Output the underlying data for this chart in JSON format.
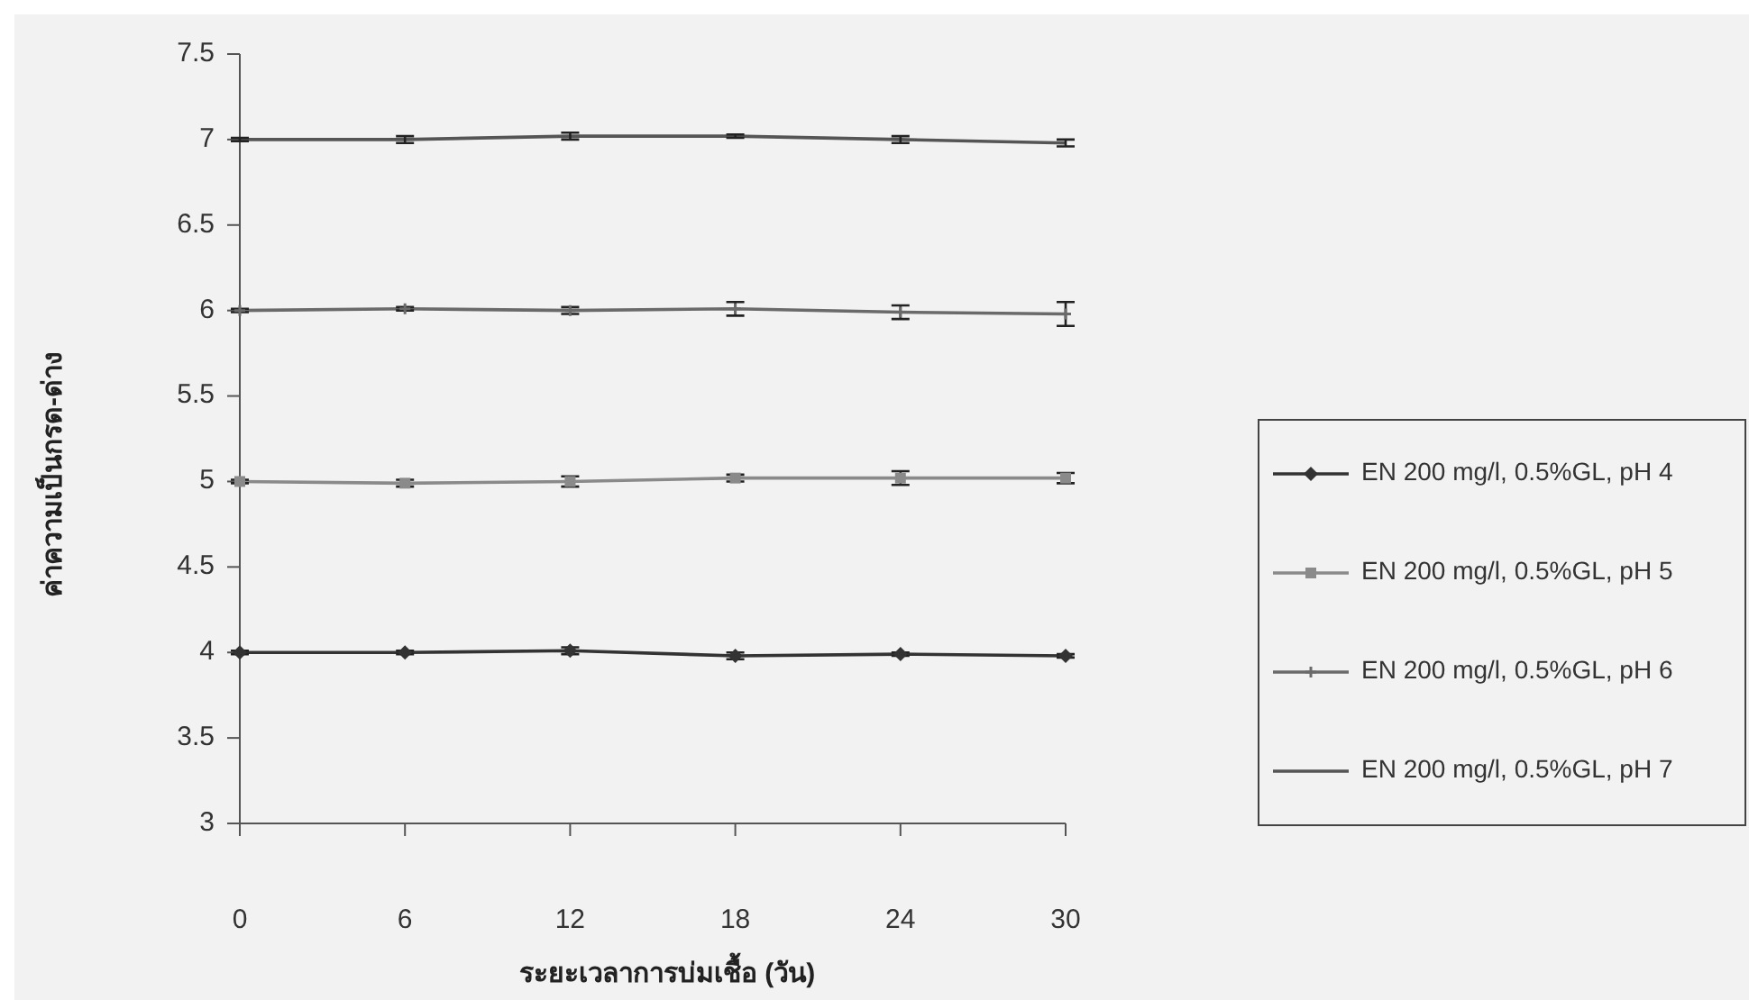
{
  "chart_data": {
    "type": "line",
    "xlabel": "ระยะเวลาการบ่มเชื้อ (วัน)",
    "ylabel": "ค่าความเป็นกรด-ด่าง",
    "x": [
      0,
      6,
      12,
      18,
      24,
      30
    ],
    "xlim": [
      0,
      30
    ],
    "xticks": [
      0,
      6,
      12,
      18,
      24,
      30
    ],
    "ylim": [
      3,
      7.5
    ],
    "yticks": [
      3,
      3.5,
      4,
      4.5,
      5,
      5.5,
      6,
      6.5,
      7,
      7.5
    ],
    "grid": false,
    "legend": "right",
    "series": [
      {
        "name": "EN 200 mg/l, 0.5%GL, pH 4",
        "color": "#333333",
        "marker": "diamond",
        "values": [
          4,
          4,
          4.01,
          3.98,
          3.99,
          3.98
        ],
        "errors": [
          0.01,
          0.01,
          0.02,
          0.02,
          0.01,
          0.01
        ]
      },
      {
        "name": "EN 200 mg/l, 0.5%GL, pH 5",
        "color": "#8a8a8a",
        "marker": "square",
        "values": [
          5,
          4.99,
          5,
          5.02,
          5.02,
          5.02
        ],
        "errors": [
          0.01,
          0.02,
          0.03,
          0.02,
          0.04,
          0.03
        ]
      },
      {
        "name": "EN 200 mg/l, 0.5%GL, pH 6",
        "color": "#6a6a6a",
        "marker": "cross",
        "values": [
          6,
          6.01,
          6,
          6.01,
          5.99,
          5.98
        ],
        "errors": [
          0.01,
          0.01,
          0.02,
          0.04,
          0.04,
          0.07
        ]
      },
      {
        "name": "EN 200 mg/l, 0.5%GL, pH 7",
        "color": "#555555",
        "marker": "none",
        "values": [
          7,
          7,
          7.02,
          7.02,
          7,
          6.98
        ],
        "errors": [
          0.01,
          0.02,
          0.02,
          0.01,
          0.02,
          0.02
        ]
      }
    ]
  }
}
